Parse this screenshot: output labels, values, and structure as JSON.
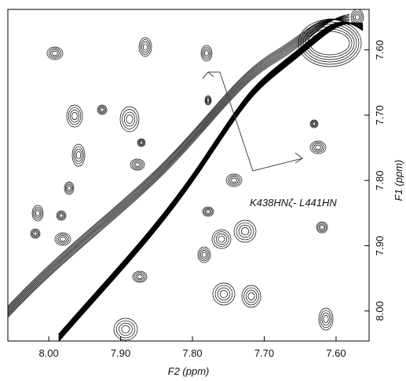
{
  "chart_data": {
    "type": "contour",
    "x_label": "F2 (ppm)",
    "y_label": "F1 (ppm)",
    "annotation": "K438HNζ- L441HN",
    "xlim": [
      8.057,
      7.554
    ],
    "ylim": [
      7.538,
      8.046
    ],
    "xticks": [
      {
        "value": 8,
        "label": "8.00"
      },
      {
        "value": 7.9,
        "label": "7.90"
      },
      {
        "value": 7.8,
        "label": "7.80"
      },
      {
        "value": 7.7,
        "label": "7.70"
      },
      {
        "value": 7.6,
        "label": "7.60"
      }
    ],
    "yticks": [
      {
        "value": 7.6,
        "label": "7.60"
      },
      {
        "value": 7.7,
        "label": "7.70"
      },
      {
        "value": 7.8,
        "label": "7.80"
      },
      {
        "value": 7.9,
        "label": "7.90"
      },
      {
        "value": 8,
        "label": "8.00"
      }
    ],
    "color": "#000000"
  }
}
